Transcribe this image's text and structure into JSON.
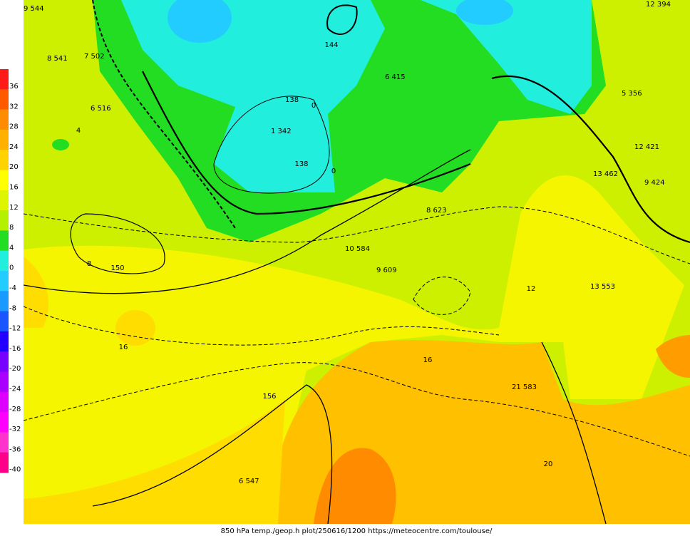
{
  "legend": {
    "levels": [
      36,
      32,
      28,
      24,
      20,
      16,
      12,
      8,
      4,
      0,
      -4,
      -8,
      -12,
      -16,
      -20,
      -24,
      -28,
      -32,
      -36,
      -40
    ],
    "colors": [
      "#ff1a1a",
      "#ff5a00",
      "#ff8c00",
      "#ffb000",
      "#ffd200",
      "#ffff00",
      "#ddf500",
      "#b4f000",
      "#22dd22",
      "#22eedd",
      "#22ccff",
      "#1a99ff",
      "#1a55ff",
      "#2200ff",
      "#7700ff",
      "#aa00ff",
      "#dd00ff",
      "#ff00ff",
      "#ff33cc",
      "#ff0088"
    ]
  },
  "map": {
    "contour_labels": [
      "150",
      "156",
      "144",
      "138",
      "16",
      "20",
      "8",
      "4",
      "0",
      "12",
      "0",
      "16"
    ],
    "station_labels": [
      "9 544",
      "8 541",
      "7 502",
      "6 516",
      "1 342",
      "6 415",
      "138",
      "8 623",
      "9 609",
      "10 584",
      "5 356",
      "12 394",
      "13 553",
      "21 583",
      "6 547",
      "12 421",
      "9 424",
      "13 462"
    ]
  },
  "footer": "850 hPa temp./geop.h plot/250616/1200 https://meteocentre.com/toulouse/"
}
